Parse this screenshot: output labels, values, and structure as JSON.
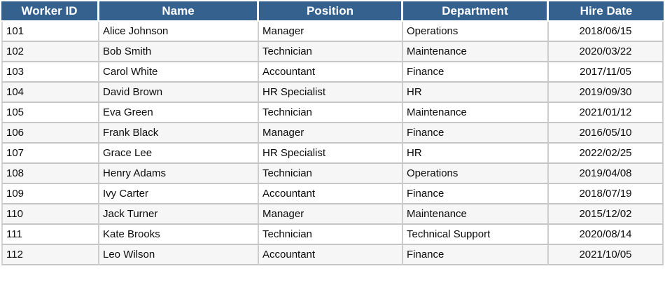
{
  "table": {
    "columns": [
      {
        "key": "worker-id",
        "label": "Worker ID",
        "align": "left"
      },
      {
        "key": "name",
        "label": "Name",
        "align": "left"
      },
      {
        "key": "position",
        "label": "Position",
        "align": "left"
      },
      {
        "key": "department",
        "label": "Department",
        "align": "left"
      },
      {
        "key": "hire-date",
        "label": "Hire Date",
        "align": "center"
      }
    ],
    "rows": [
      [
        "101",
        "Alice Johnson",
        "Manager",
        "Operations",
        "2018/06/15"
      ],
      [
        "102",
        "Bob Smith",
        "Technician",
        "Maintenance",
        "2020/03/22"
      ],
      [
        "103",
        "Carol White",
        "Accountant",
        "Finance",
        "2017/11/05"
      ],
      [
        "104",
        "David Brown",
        "HR Specialist",
        "HR",
        "2019/09/30"
      ],
      [
        "105",
        "Eva Green",
        "Technician",
        "Maintenance",
        "2021/01/12"
      ],
      [
        "106",
        "Frank Black",
        "Manager",
        "Finance",
        "2016/05/10"
      ],
      [
        "107",
        "Grace Lee",
        "HR Specialist",
        "HR",
        "2022/02/25"
      ],
      [
        "108",
        "Henry Adams",
        "Technician",
        "Operations",
        "2019/04/08"
      ],
      [
        "109",
        "Ivy Carter",
        "Accountant",
        "Finance",
        "2018/07/19"
      ],
      [
        "110",
        "Jack Turner",
        "Manager",
        "Maintenance",
        "2015/12/02"
      ],
      [
        "111",
        "Kate Brooks",
        "Technician",
        "Technical Support",
        "2020/08/14"
      ],
      [
        "112",
        "Leo Wilson",
        "Accountant",
        "Finance",
        "2021/10/05"
      ]
    ]
  },
  "colors": {
    "header_bg": "#35618F",
    "header_text": "#FFFFFF",
    "row_bg": "#FFFFFF",
    "row_alt_bg": "#F6F6F6",
    "grid_line": "#C9C9C9",
    "header_gap": "#FFFFFF"
  },
  "chart_data": {
    "type": "table",
    "title": "",
    "columns": [
      "Worker ID",
      "Name",
      "Position",
      "Department",
      "Hire Date"
    ],
    "rows": [
      [
        "101",
        "Alice Johnson",
        "Manager",
        "Operations",
        "2018/06/15"
      ],
      [
        "102",
        "Bob Smith",
        "Technician",
        "Maintenance",
        "2020/03/22"
      ],
      [
        "103",
        "Carol White",
        "Accountant",
        "Finance",
        "2017/11/05"
      ],
      [
        "104",
        "David Brown",
        "HR Specialist",
        "HR",
        "2019/09/30"
      ],
      [
        "105",
        "Eva Green",
        "Technician",
        "Maintenance",
        "2021/01/12"
      ],
      [
        "106",
        "Frank Black",
        "Manager",
        "Finance",
        "2016/05/10"
      ],
      [
        "107",
        "Grace Lee",
        "HR Specialist",
        "HR",
        "2022/02/25"
      ],
      [
        "108",
        "Henry Adams",
        "Technician",
        "Operations",
        "2019/04/08"
      ],
      [
        "109",
        "Ivy Carter",
        "Accountant",
        "Finance",
        "2018/07/19"
      ],
      [
        "110",
        "Jack Turner",
        "Manager",
        "Maintenance",
        "2015/12/02"
      ],
      [
        "111",
        "Kate Brooks",
        "Technician",
        "Technical Support",
        "2020/08/14"
      ],
      [
        "112",
        "Leo Wilson",
        "Accountant",
        "Finance",
        "2021/10/05"
      ]
    ],
    "layout": {
      "header_row": true,
      "alternating_rows": true,
      "grid": true,
      "date_column_align": "center"
    }
  }
}
